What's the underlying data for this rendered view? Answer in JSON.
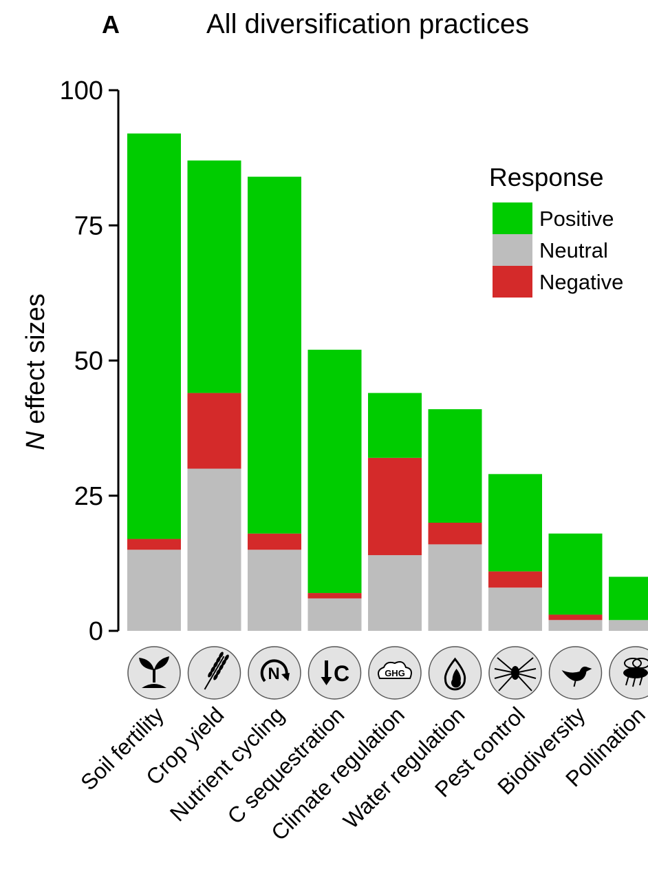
{
  "panel_letter": "A",
  "colors": {
    "positive": "#00cc00",
    "neutral": "#bdbdbd",
    "negative": "#d42a2a",
    "icon_fill": "#e3e3e3"
  },
  "chart_data": {
    "type": "bar",
    "stacked": true,
    "title": "All diversification practices",
    "ylabel_italic": "N",
    "ylabel_rest": " effect sizes",
    "xlabel": "",
    "ylim": [
      0,
      100
    ],
    "yticks": [
      "0",
      "25",
      "50",
      "75",
      "100"
    ],
    "categories": [
      "Soil fertility",
      "Crop yield",
      "Nutrient cycling",
      "C sequestration",
      "Climate regulation",
      "Water regulation",
      "Pest control",
      "Biodiversity",
      "Pollination"
    ],
    "category_icons": [
      "sprout-icon",
      "wheat-icon",
      "nitrogen-cycle-icon",
      "carbon-down-icon",
      "ghg-cloud-icon",
      "water-drop-icon",
      "spider-icon",
      "bird-icon",
      "bee-icon"
    ],
    "icon_text": {
      "nitrogen": "N",
      "carbon": "C",
      "ghg": "GHG"
    },
    "series": [
      {
        "name": "Neutral",
        "values": [
          15,
          30,
          15,
          6,
          14,
          16,
          8,
          2,
          2
        ]
      },
      {
        "name": "Negative",
        "values": [
          2,
          14,
          3,
          1,
          18,
          4,
          3,
          1,
          0
        ]
      },
      {
        "name": "Positive",
        "values": [
          75,
          43,
          66,
          45,
          12,
          21,
          18,
          15,
          8
        ]
      }
    ],
    "legend": {
      "title": "Response",
      "position": "top-right",
      "entries": [
        "Positive",
        "Neutral",
        "Negative"
      ]
    },
    "grid": false
  }
}
